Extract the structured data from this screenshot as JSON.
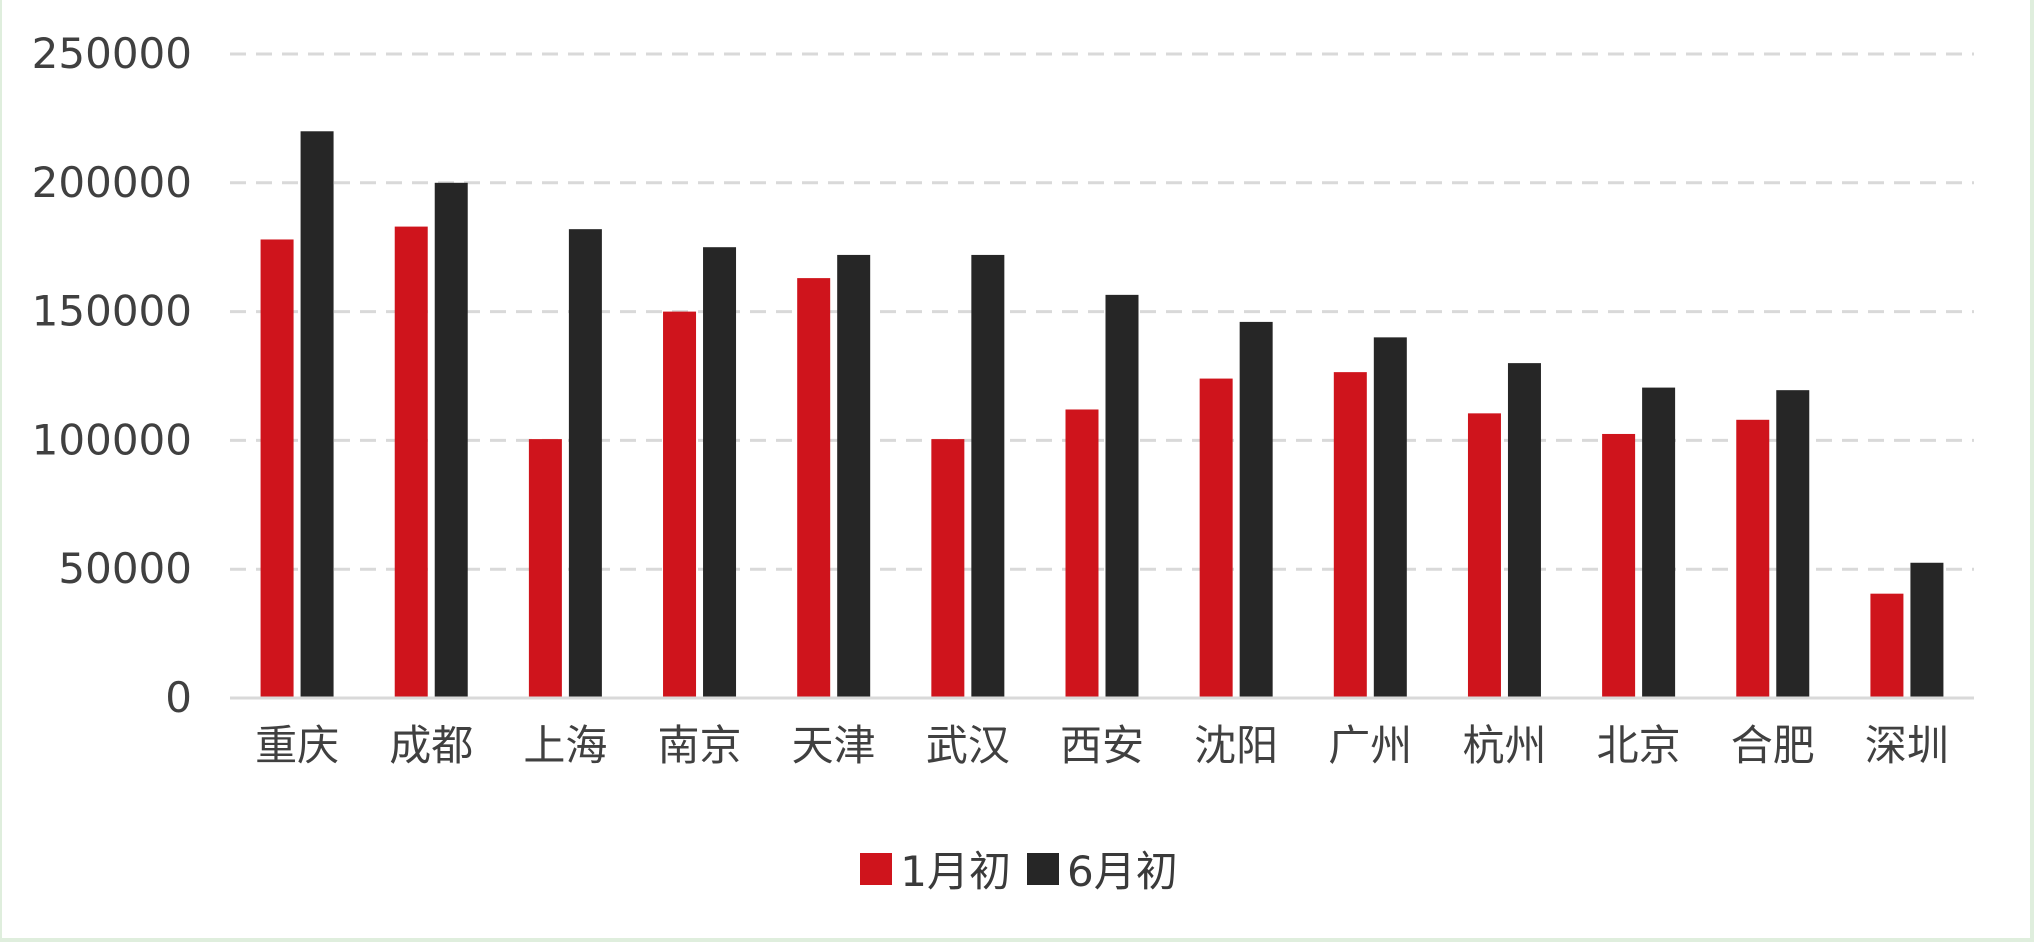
{
  "chart_data": {
    "type": "bar",
    "categories": [
      "重庆",
      "成都",
      "上海",
      "南京",
      "天津",
      "武汉",
      "西安",
      "沈阳",
      "广州",
      "杭州",
      "北京",
      "合肥",
      "深圳"
    ],
    "series": [
      {
        "name": "1月初",
        "color": "#cf141c",
        "values": [
          178000,
          183000,
          100500,
          150000,
          163000,
          100500,
          112000,
          124000,
          126500,
          110500,
          102500,
          108000,
          40500
        ]
      },
      {
        "name": "6月初",
        "color": "#262626",
        "values": [
          220000,
          200000,
          182000,
          175000,
          172000,
          172000,
          156500,
          146000,
          140000,
          130000,
          120500,
          119500,
          52500
        ]
      }
    ],
    "yticks": [
      "0",
      "50000",
      "100000",
      "150000",
      "200000",
      "250000"
    ],
    "ylim": [
      0,
      250000
    ],
    "grid": true,
    "legend_position": "bottom"
  }
}
